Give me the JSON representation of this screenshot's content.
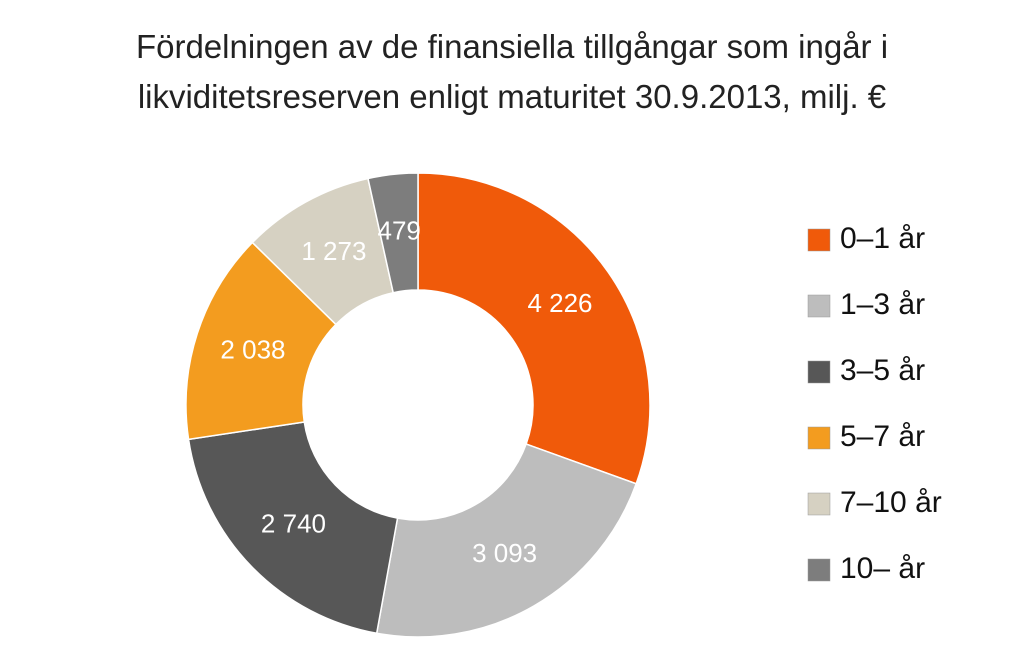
{
  "chart_data": {
    "type": "donut",
    "title": "Fördelningen av de finansiella tillgångar som ingår i likviditetsreserven enligt maturitet 30.9.2013, milj. €",
    "categories": [
      "0–1 år",
      "1–3 år",
      "3–5 år",
      "5–7 år",
      "7–10 år",
      "10– år"
    ],
    "values": [
      4226,
      3093,
      2740,
      2038,
      1273,
      479
    ],
    "value_labels": [
      "4 226",
      "3 093",
      "2 740",
      "2 038",
      "1 273",
      "479"
    ],
    "colors": [
      "#f05a0a",
      "#bdbdbd",
      "#575757",
      "#f39c1f",
      "#d6d1c2",
      "#7d7d7d"
    ],
    "legend": "right"
  }
}
